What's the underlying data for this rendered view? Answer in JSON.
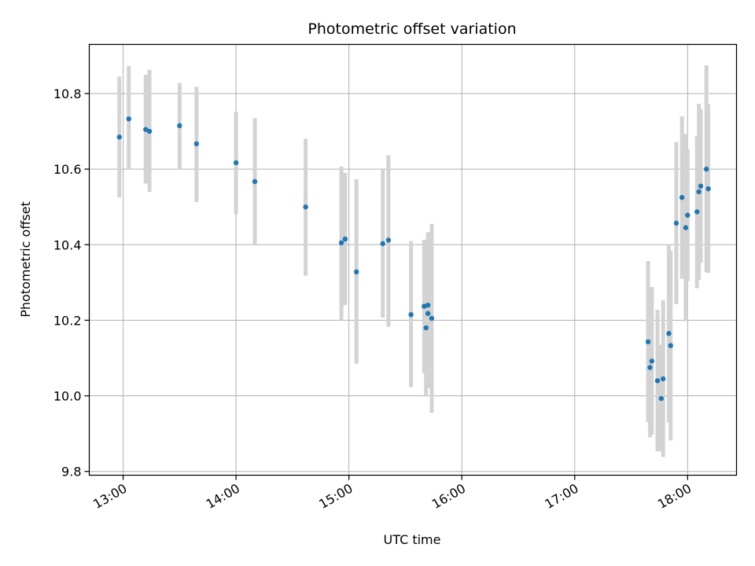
{
  "chart_data": {
    "type": "scatter",
    "title": "Photometric offset variation",
    "xlabel": "UTC time",
    "ylabel": "Photometric offset",
    "x_tick_labels": [
      "13:00",
      "14:00",
      "15:00",
      "16:00",
      "17:00",
      "18:00"
    ],
    "x_ticks": [
      "13:00",
      "14:00",
      "15:00",
      "16:00",
      "17:00",
      "18:00"
    ],
    "y_ticks": [
      9.8,
      10.0,
      10.2,
      10.4,
      10.6,
      10.8
    ],
    "y_tick_labels": [
      "9.8",
      "10.0",
      "10.2",
      "10.4",
      "10.6",
      "10.8"
    ],
    "xlim": [
      "12:42",
      "18:26"
    ],
    "ylim": [
      9.79,
      10.93
    ],
    "grid": true,
    "colors": {
      "point": "#1f77b4",
      "errorbar": "#d3d3d3",
      "grid": "#b0b0b0"
    },
    "series": [
      {
        "points": [
          {
            "x": "12:58",
            "y": 10.685,
            "lo": 10.525,
            "hi": 10.845
          },
          {
            "x": "13:03",
            "y": 10.733,
            "lo": 10.6,
            "hi": 10.873
          },
          {
            "x": "13:12",
            "y": 10.705,
            "lo": 10.562,
            "hi": 10.85
          },
          {
            "x": "13:14",
            "y": 10.7,
            "lo": 10.54,
            "hi": 10.863
          },
          {
            "x": "13:30",
            "y": 10.715,
            "lo": 10.6,
            "hi": 10.828
          },
          {
            "x": "13:39",
            "y": 10.667,
            "lo": 10.513,
            "hi": 10.818
          },
          {
            "x": "14:00",
            "y": 10.617,
            "lo": 10.48,
            "hi": 10.752
          },
          {
            "x": "14:10",
            "y": 10.567,
            "lo": 10.4,
            "hi": 10.735
          },
          {
            "x": "14:37",
            "y": 10.5,
            "lo": 10.318,
            "hi": 10.68
          },
          {
            "x": "14:56",
            "y": 10.405,
            "lo": 10.2,
            "hi": 10.607
          },
          {
            "x": "14:58",
            "y": 10.415,
            "lo": 10.24,
            "hi": 10.59
          },
          {
            "x": "15:04",
            "y": 10.328,
            "lo": 10.085,
            "hi": 10.573
          },
          {
            "x": "15:18",
            "y": 10.403,
            "lo": 10.207,
            "hi": 10.6
          },
          {
            "x": "15:21",
            "y": 10.412,
            "lo": 10.183,
            "hi": 10.637
          },
          {
            "x": "15:33",
            "y": 10.215,
            "lo": 10.023,
            "hi": 10.41
          },
          {
            "x": "15:40",
            "y": 10.237,
            "lo": 10.06,
            "hi": 10.413
          },
          {
            "x": "15:41",
            "y": 10.18,
            "lo": 10.0,
            "hi": 10.36
          },
          {
            "x": "15:42",
            "y": 10.218,
            "lo": 10.02,
            "hi": 10.415
          },
          {
            "x": "15:42",
            "y": 10.24,
            "lo": 10.047,
            "hi": 10.433
          },
          {
            "x": "15:44",
            "y": 10.205,
            "lo": 9.955,
            "hi": 10.455
          },
          {
            "x": "17:39",
            "y": 10.143,
            "lo": 9.93,
            "hi": 10.357
          },
          {
            "x": "17:40",
            "y": 10.075,
            "lo": 9.89,
            "hi": 10.26
          },
          {
            "x": "17:41",
            "y": 10.092,
            "lo": 9.897,
            "hi": 10.288
          },
          {
            "x": "17:44",
            "y": 10.04,
            "lo": 9.853,
            "hi": 10.228
          },
          {
            "x": "17:46",
            "y": 9.993,
            "lo": 9.853,
            "hi": 10.135
          },
          {
            "x": "17:47",
            "y": 10.045,
            "lo": 9.838,
            "hi": 10.253
          },
          {
            "x": "17:50",
            "y": 10.165,
            "lo": 9.93,
            "hi": 10.4
          },
          {
            "x": "17:51",
            "y": 10.133,
            "lo": 9.882,
            "hi": 10.385
          },
          {
            "x": "17:54",
            "y": 10.457,
            "lo": 10.243,
            "hi": 10.672
          },
          {
            "x": "17:57",
            "y": 10.525,
            "lo": 10.31,
            "hi": 10.74
          },
          {
            "x": "17:59",
            "y": 10.445,
            "lo": 10.198,
            "hi": 10.693
          },
          {
            "x": "18:00",
            "y": 10.478,
            "lo": 10.303,
            "hi": 10.653
          },
          {
            "x": "18:05",
            "y": 10.487,
            "lo": 10.285,
            "hi": 10.688
          },
          {
            "x": "18:06",
            "y": 10.54,
            "lo": 10.307,
            "hi": 10.773
          },
          {
            "x": "18:07",
            "y": 10.555,
            "lo": 10.352,
            "hi": 10.758
          },
          {
            "x": "18:10",
            "y": 10.6,
            "lo": 10.327,
            "hi": 10.875
          },
          {
            "x": "18:11",
            "y": 10.548,
            "lo": 10.325,
            "hi": 10.772
          }
        ]
      }
    ]
  }
}
